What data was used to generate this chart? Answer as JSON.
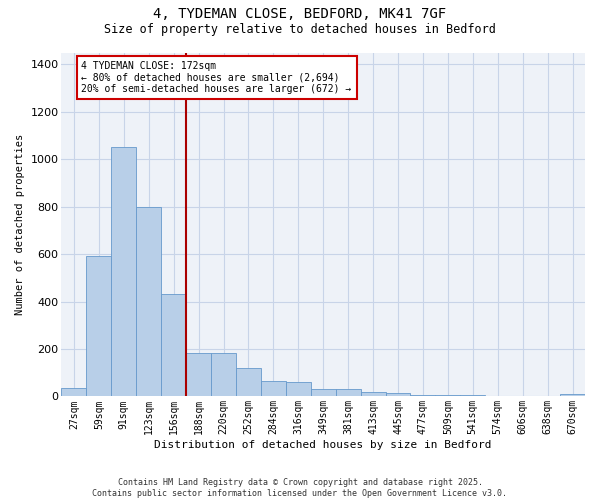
{
  "title_line1": "4, TYDEMAN CLOSE, BEDFORD, MK41 7GF",
  "title_line2": "Size of property relative to detached houses in Bedford",
  "xlabel": "Distribution of detached houses by size in Bedford",
  "ylabel": "Number of detached properties",
  "categories": [
    "27sqm",
    "59sqm",
    "91sqm",
    "123sqm",
    "156sqm",
    "188sqm",
    "220sqm",
    "252sqm",
    "284sqm",
    "316sqm",
    "349sqm",
    "381sqm",
    "413sqm",
    "445sqm",
    "477sqm",
    "509sqm",
    "541sqm",
    "574sqm",
    "606sqm",
    "638sqm",
    "670sqm"
  ],
  "values": [
    35,
    590,
    1050,
    800,
    430,
    185,
    185,
    120,
    65,
    60,
    30,
    30,
    18,
    15,
    8,
    5,
    4,
    3,
    2,
    2,
    10
  ],
  "bar_color": "#b8cfe8",
  "bar_edge_color": "#6699cc",
  "grid_color": "#c8d4e8",
  "background_color": "#eef2f8",
  "red_line_index": 4,
  "annotation_text": "4 TYDEMAN CLOSE: 172sqm\n← 80% of detached houses are smaller (2,694)\n20% of semi-detached houses are larger (672) →",
  "annotation_box_edgecolor": "#cc0000",
  "ylim": [
    0,
    1450
  ],
  "yticks": [
    0,
    200,
    400,
    600,
    800,
    1000,
    1200,
    1400
  ],
  "footer_line1": "Contains HM Land Registry data © Crown copyright and database right 2025.",
  "footer_line2": "Contains public sector information licensed under the Open Government Licence v3.0."
}
